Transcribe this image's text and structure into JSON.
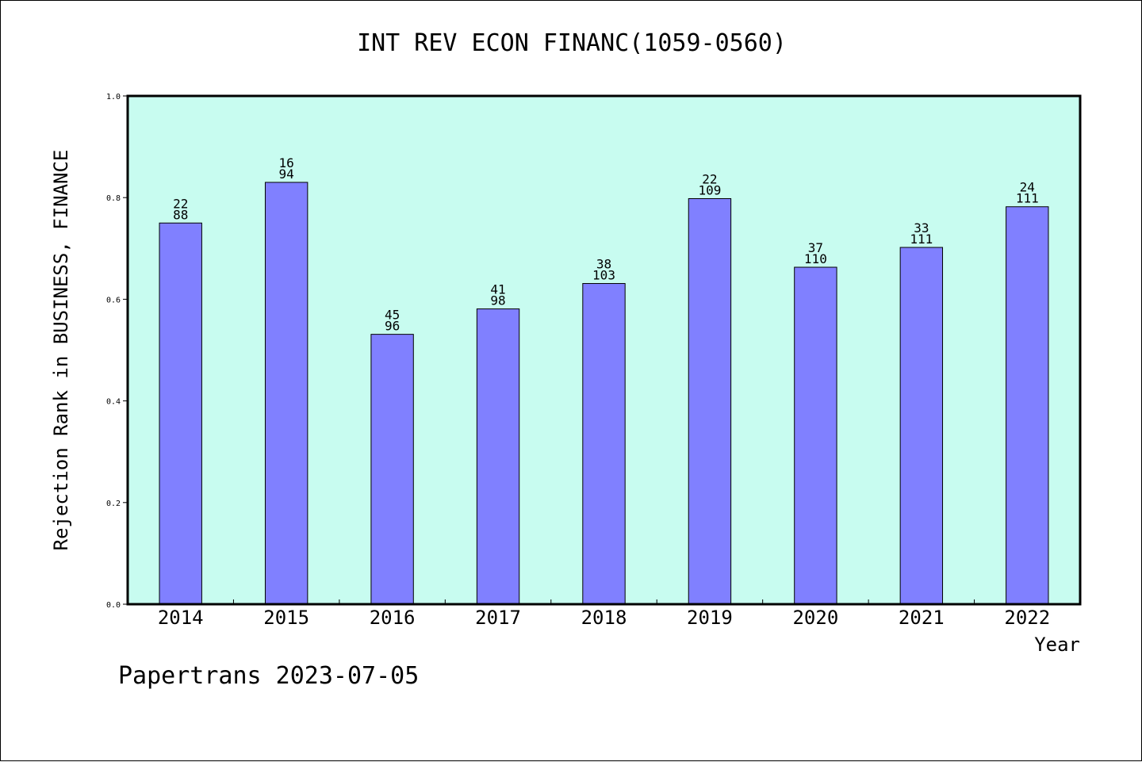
{
  "chart_data": {
    "type": "bar",
    "title": "INT REV ECON FINANC(1059-0560)",
    "xlabel": "Year",
    "ylabel": "Rejection Rank in BUSINESS, FINANCE",
    "categories": [
      "2014",
      "2015",
      "2016",
      "2017",
      "2018",
      "2019",
      "2020",
      "2021",
      "2022"
    ],
    "values": [
      0.75,
      0.83,
      0.531,
      0.581,
      0.631,
      0.798,
      0.663,
      0.702,
      0.782
    ],
    "bar_labels": [
      [
        "22",
        "88"
      ],
      [
        "16",
        "94"
      ],
      [
        "45",
        "96"
      ],
      [
        "41",
        "98"
      ],
      [
        "38",
        "103"
      ],
      [
        "22",
        "109"
      ],
      [
        "37",
        "110"
      ],
      [
        "33",
        "111"
      ],
      [
        "24",
        "111"
      ]
    ],
    "ylim": [
      0,
      1.0
    ],
    "yticks": [
      "0.0",
      "0.2",
      "0.4",
      "0.6",
      "0.8",
      "1.0"
    ],
    "grid": false,
    "colors": {
      "plot_background": "#c8fcf0",
      "bar_fill": "#8080ff",
      "bar_stroke": "#000000"
    }
  },
  "footer": "Papertrans 2023-07-05"
}
